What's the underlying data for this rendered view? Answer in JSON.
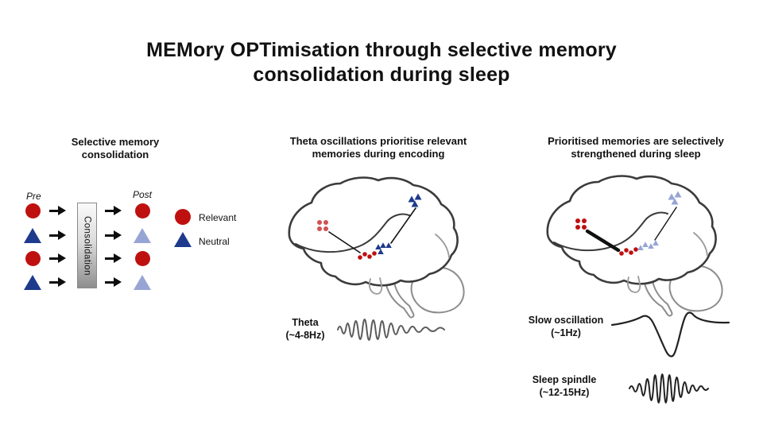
{
  "title": {
    "line1": "MEMory OPTimisation through selective memory",
    "line2": "consolidation during sleep"
  },
  "colors": {
    "relevant_red": "#bf1010",
    "neutral_navy": "#1e3a8c",
    "neutral_faded": "#97a5d5",
    "brain_outline": "#3b3b3b",
    "brain_secondary": "#8d8d8d"
  },
  "left_panel": {
    "heading": "Selective memory consolidation",
    "pre_label": "Pre",
    "post_label": "Post",
    "consolidation_label": "Consolidation",
    "rows": [
      {
        "pre": "relevant",
        "post": "relevant"
      },
      {
        "pre": "neutral",
        "post": "neutral-faded"
      },
      {
        "pre": "relevant",
        "post": "relevant"
      },
      {
        "pre": "neutral",
        "post": "neutral-faded"
      }
    ],
    "legend": [
      {
        "shape": "relevant-circle",
        "label": "Relevant"
      },
      {
        "shape": "neutral-triangle",
        "label": "Neutral"
      }
    ]
  },
  "middle_panel": {
    "heading": "Theta oscillations prioritise relevant memories during encoding",
    "wave_name": "Theta",
    "wave_freq": "(~4-8Hz)"
  },
  "right_panel": {
    "heading": "Prioritised memories are selectively strengthened during sleep",
    "slow_name": "Slow oscillation",
    "slow_freq": "(~1Hz)",
    "spindle_name": "Sleep spindle",
    "spindle_freq": "(~12-15Hz)"
  }
}
